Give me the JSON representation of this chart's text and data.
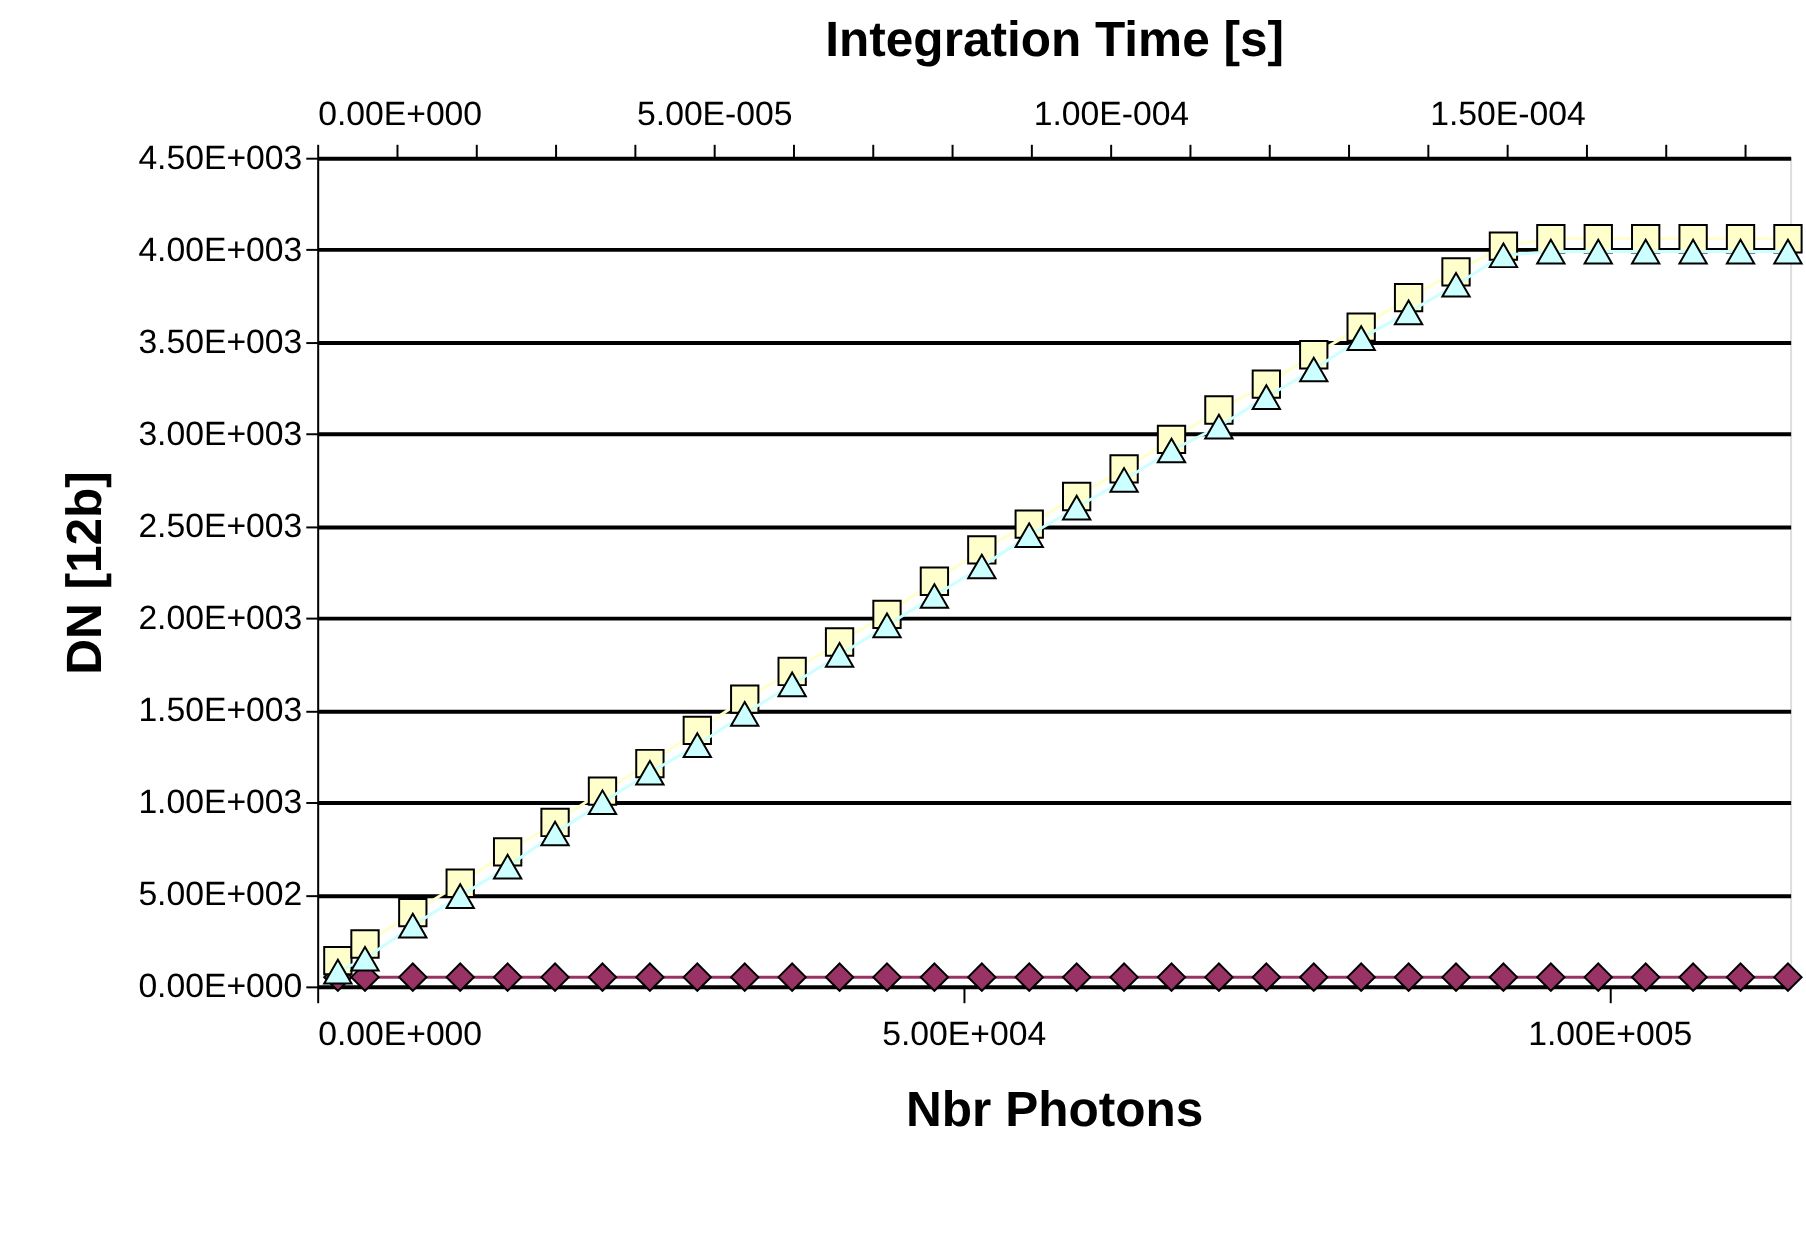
{
  "chart_data": {
    "type": "line",
    "xlabel": "Nbr Photons",
    "ylabel": "DN [12b]",
    "x2label": "Integration Time [s]",
    "x": [
      1600,
      3700,
      7400,
      11070,
      14740,
      18410,
      22080,
      25750,
      29420,
      33090,
      36760,
      40430,
      44100,
      47770,
      51440,
      55110,
      58780,
      62450,
      66120,
      69790,
      73460,
      77130,
      80800,
      84470,
      88140,
      91810,
      95480,
      99150,
      102820,
      106490,
      110160,
      113830
    ],
    "series": [
      {
        "color": "#ffffcc",
        "marker": "square",
        "line_style": "solid",
        "values": [
          140,
          230,
          400,
          560,
          730,
          890,
          1060,
          1210,
          1390,
          1560,
          1710,
          1870,
          2020,
          2200,
          2370,
          2510,
          2660,
          2810,
          2970,
          3130,
          3270,
          3430,
          3580,
          3740,
          3880,
          4020,
          4060,
          4060,
          4060,
          4060,
          4060,
          4060
        ]
      },
      {
        "color": "#ccffff",
        "marker": "triangle",
        "line_style": "solid",
        "values": [
          80,
          150,
          330,
          490,
          650,
          830,
          1000,
          1160,
          1310,
          1480,
          1640,
          1800,
          1960,
          2120,
          2280,
          2450,
          2600,
          2750,
          2910,
          3040,
          3200,
          3350,
          3520,
          3660,
          3810,
          3970,
          3990,
          3990,
          3990,
          3990,
          3990,
          3990
        ]
      },
      {
        "color": "#993366",
        "marker": "diamond",
        "line_style": "solid",
        "values": [
          50,
          50,
          50,
          50,
          50,
          50,
          50,
          50,
          50,
          50,
          50,
          50,
          50,
          50,
          50,
          50,
          50,
          50,
          50,
          50,
          50,
          50,
          50,
          50,
          50,
          50,
          50,
          50,
          50,
          50,
          50,
          50
        ]
      }
    ],
    "xlim": [
      0,
      114000
    ],
    "xticks": [
      {
        "value": 0,
        "label": "0.00E+000"
      },
      {
        "value": 50000,
        "label": "5.00E+004"
      },
      {
        "value": 100000,
        "label": "1.00E+005"
      }
    ],
    "ylim": [
      0,
      4500
    ],
    "yticks": [
      {
        "value": 0,
        "label": "0.00E+000"
      },
      {
        "value": 500,
        "label": "5.00E+002"
      },
      {
        "value": 1000,
        "label": "1.00E+003"
      },
      {
        "value": 1500,
        "label": "1.50E+003"
      },
      {
        "value": 2000,
        "label": "2.00E+003"
      },
      {
        "value": 2500,
        "label": "2.50E+003"
      },
      {
        "value": 3000,
        "label": "3.00E+003"
      },
      {
        "value": 3500,
        "label": "3.50E+003"
      },
      {
        "value": 4000,
        "label": "4.00E+003"
      },
      {
        "value": 4500,
        "label": "4.50E+003"
      }
    ],
    "x2lim": [
      0,
      0.0001857
    ],
    "x2ticks": [
      {
        "value": 0,
        "label": "0.00E+000"
      },
      {
        "value": 1e-05,
        "label": null
      },
      {
        "value": 2e-05,
        "label": null
      },
      {
        "value": 3e-05,
        "label": null
      },
      {
        "value": 4e-05,
        "label": null
      },
      {
        "value": 5e-05,
        "label": "5.00E-005"
      },
      {
        "value": 6e-05,
        "label": null
      },
      {
        "value": 7e-05,
        "label": null
      },
      {
        "value": 8e-05,
        "label": null
      },
      {
        "value": 9e-05,
        "label": null
      },
      {
        "value": 0.0001,
        "label": "1.00E-004"
      },
      {
        "value": 0.00011,
        "label": null
      },
      {
        "value": 0.00012,
        "label": null
      },
      {
        "value": 0.00013,
        "label": null
      },
      {
        "value": 0.00014,
        "label": null
      },
      {
        "value": 0.00015,
        "label": "1.50E-004"
      },
      {
        "value": 0.00016,
        "label": null
      },
      {
        "value": 0.00017,
        "label": null
      },
      {
        "value": 0.00018,
        "label": null
      }
    ],
    "grid": "y"
  }
}
